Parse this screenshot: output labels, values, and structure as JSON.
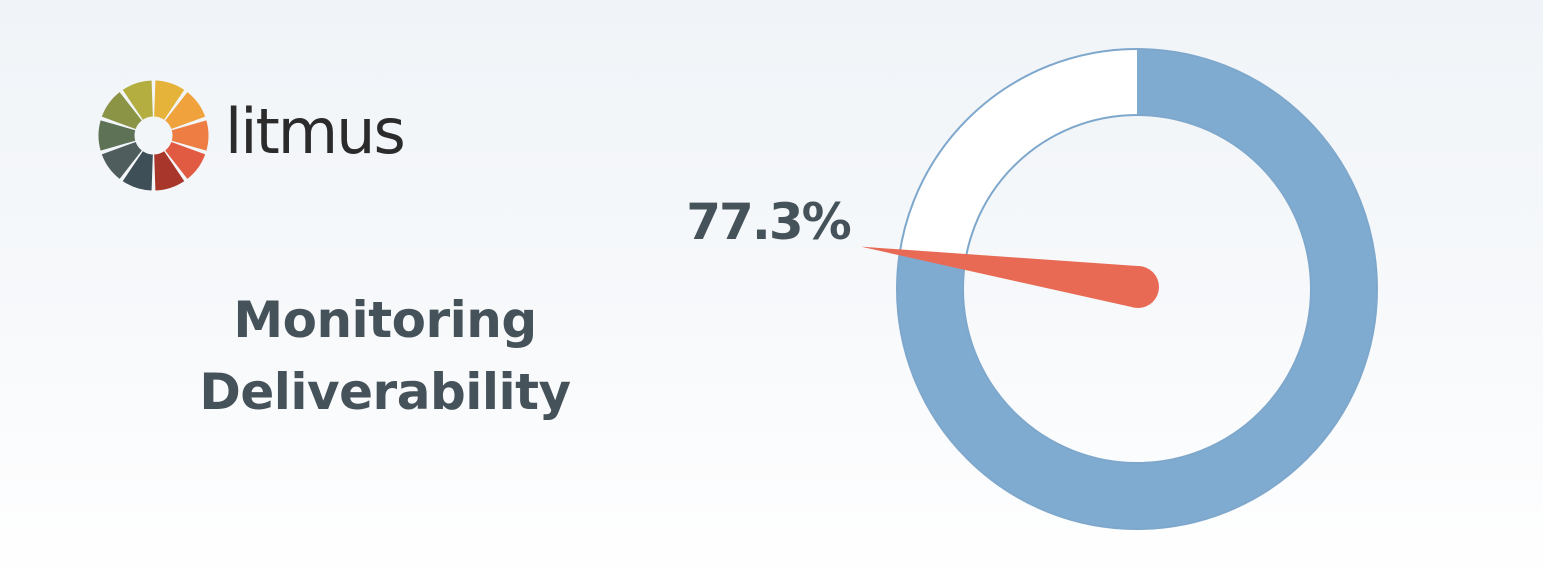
{
  "brand": {
    "name": "litmus"
  },
  "headline": {
    "line1": "Monitoring",
    "line2": "Deliverability"
  },
  "colors": {
    "ring_fill": "#80abd0",
    "ring_remainder": "#ffffff",
    "ring_stroke": "#7ea7cc",
    "needle": "#e96a54",
    "text": "#46525a",
    "logo_segments": [
      "#e6b33a",
      "#f0a23c",
      "#ed7d42",
      "#e15a42",
      "#a8362a",
      "#3f4f57",
      "#4f5d5c",
      "#5e7356",
      "#8b9444",
      "#b4ad40"
    ]
  },
  "chart_data": {
    "type": "pie",
    "values": [
      77.3,
      22.7
    ],
    "label": "77.3%"
  }
}
